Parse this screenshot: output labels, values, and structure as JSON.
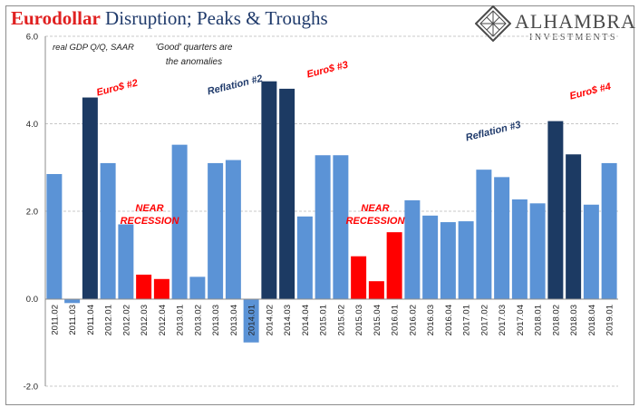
{
  "title": {
    "part1": "Eurodollar",
    "part2": " Disruption; Peaks & Troughs"
  },
  "logo": {
    "name": "ALHAMBRA",
    "sub": "INVESTMENTS"
  },
  "colors": {
    "light": "#5b93d6",
    "dark": "#1c3a63",
    "red": "#ff0000",
    "title_red": "#e02020",
    "annotation_navy": "#1f3a6b"
  },
  "chart_data": {
    "type": "bar",
    "ylim": [
      -2.0,
      6.0
    ],
    "yticks": [
      -2.0,
      0.0,
      2.0,
      4.0,
      6.0
    ],
    "ytick_labels": [
      "-2.0",
      "0.0",
      "2.0",
      "4.0",
      "6.0"
    ],
    "grid": true,
    "categories": [
      "2011.02",
      "2011.03",
      "2011.04",
      "2012.01",
      "2012.02",
      "2012.03",
      "2012.04",
      "2013.01",
      "2013.02",
      "2013.03",
      "2013.04",
      "2014.01",
      "2014.02",
      "2014.03",
      "2014.04",
      "2015.01",
      "2015.02",
      "2015.03",
      "2015.04",
      "2016.01",
      "2016.02",
      "2016.03",
      "2016.04",
      "2017.01",
      "2017.02",
      "2017.03",
      "2017.04",
      "2018.01",
      "2018.02",
      "2018.03",
      "2018.04",
      "2019.01"
    ],
    "values": [
      2.85,
      -0.1,
      4.6,
      3.1,
      1.7,
      0.55,
      0.45,
      3.52,
      0.5,
      3.1,
      3.17,
      -1.0,
      4.97,
      4.8,
      1.88,
      3.28,
      3.28,
      0.97,
      0.4,
      1.52,
      2.25,
      1.9,
      1.75,
      1.77,
      2.95,
      2.78,
      2.27,
      2.18,
      4.06,
      3.3,
      2.15,
      3.1
    ],
    "bar_colors": [
      "light",
      "light",
      "dark",
      "light",
      "light",
      "red",
      "red",
      "light",
      "light",
      "light",
      "light",
      "light",
      "dark",
      "dark",
      "light",
      "light",
      "light",
      "red",
      "red",
      "red",
      "light",
      "light",
      "light",
      "light",
      "light",
      "light",
      "light",
      "light",
      "dark",
      "dark",
      "light",
      "light"
    ],
    "annotations": [
      {
        "text": "real GDP Q/Q, SAAR",
        "color": "dark_text"
      },
      {
        "text": "'Good' quarters are",
        "color": "dark_text"
      },
      {
        "text": "the anomalies",
        "color": "dark_text"
      },
      {
        "text": "Euro$ #2",
        "color": "red"
      },
      {
        "text": "Reflation #2",
        "color": "navy"
      },
      {
        "text": "Euro$ #3",
        "color": "red"
      },
      {
        "text": "Euro$ #4",
        "color": "red"
      },
      {
        "text": "Reflation #3",
        "color": "navy"
      },
      {
        "text": "NEAR",
        "color": "red"
      },
      {
        "text": "RECESSION",
        "color": "red"
      },
      {
        "text": "NEAR",
        "color": "red"
      },
      {
        "text": "RECESSION",
        "color": "red"
      }
    ]
  }
}
